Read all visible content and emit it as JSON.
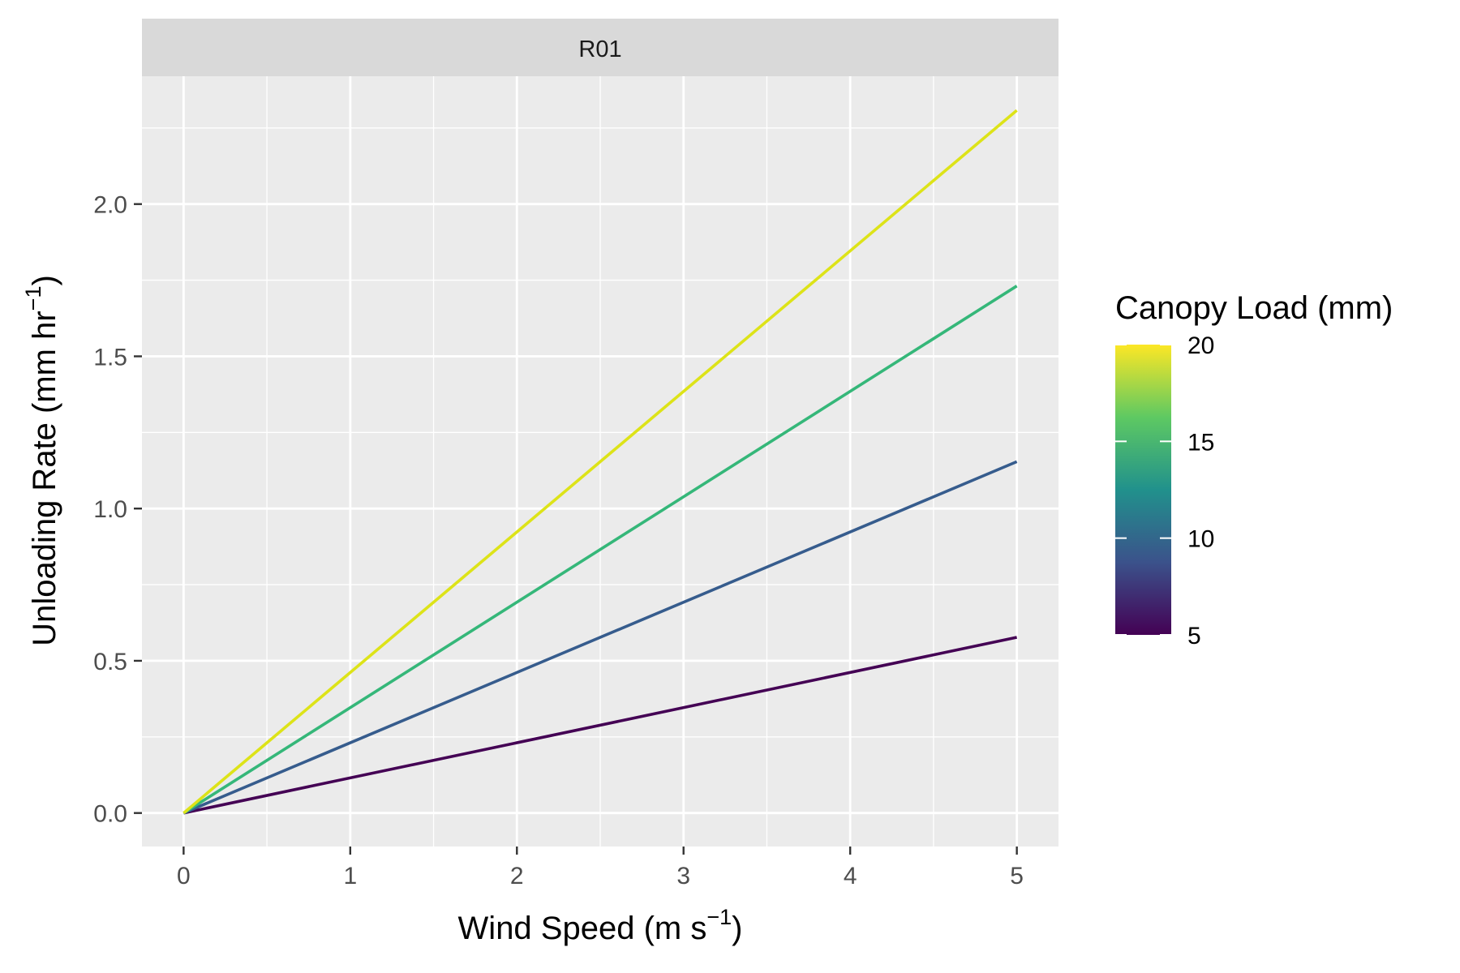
{
  "chart_data": {
    "type": "line",
    "facet_label": "R01",
    "xlabel": {
      "main": "Wind Speed (m s",
      "sup": "−1",
      "tail": ")"
    },
    "ylabel": {
      "main": "Unloading Rate (mm hr",
      "sup": "−1",
      "tail": ")"
    },
    "xlim": [
      -0.25,
      5.25
    ],
    "ylim": [
      -0.11,
      2.42
    ],
    "x_ticks": [
      0,
      1,
      2,
      3,
      4,
      5
    ],
    "x_tick_labels": [
      "0",
      "1",
      "2",
      "3",
      "4",
      "5"
    ],
    "y_ticks": [
      0,
      0.5,
      1,
      1.5,
      2
    ],
    "y_tick_labels": [
      "0.0",
      "0.5",
      "1.0",
      "1.5",
      "2.0"
    ],
    "grid": true,
    "legend": {
      "title": "Canopy Load (mm)",
      "placement": "right",
      "range": [
        5,
        20
      ],
      "ticks": [
        5,
        10,
        15,
        20
      ],
      "tick_labels": [
        "5",
        "10",
        "15",
        "20"
      ],
      "colormap": [
        "#440154",
        "#3b528b",
        "#21918c",
        "#5ec962",
        "#fde725"
      ]
    },
    "series": [
      {
        "canopy_load": 5,
        "color": "#440154",
        "x": [
          0,
          5
        ],
        "y": [
          0,
          0.577
        ]
      },
      {
        "canopy_load": 10,
        "color": "#365c8d",
        "x": [
          0,
          5
        ],
        "y": [
          0,
          1.154
        ]
      },
      {
        "canopy_load": 15,
        "color": "#35b779",
        "x": [
          0,
          5
        ],
        "y": [
          0,
          1.731
        ]
      },
      {
        "canopy_load": 20,
        "color": "#dde318",
        "x": [
          0,
          5
        ],
        "y": [
          0,
          2.308
        ]
      }
    ]
  }
}
